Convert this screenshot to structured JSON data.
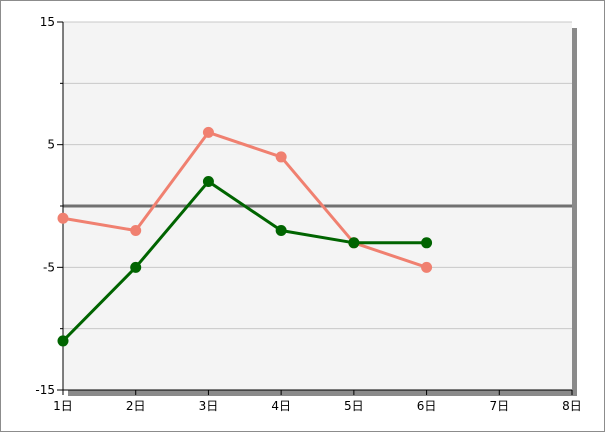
{
  "chart_data": {
    "type": "line",
    "x": [
      "1日",
      "2日",
      "3日",
      "4日",
      "5日",
      "6日",
      "7日",
      "8日"
    ],
    "xlim": [
      1,
      8
    ],
    "ylim": [
      -15,
      15
    ],
    "y_tick_labels": [
      "15",
      "5",
      "-5",
      "-15"
    ],
    "y_major_ticks": [
      15,
      5,
      -5,
      -15
    ],
    "y_minor_ticks": [
      10,
      0,
      -10
    ],
    "gridlines_y": [
      15,
      10,
      5,
      -5,
      -10,
      -15
    ],
    "reference_line": 0,
    "grid": true,
    "series": [
      {
        "color": "#f08070",
        "x": [
          1,
          2,
          3,
          4,
          5,
          6
        ],
        "values": [
          -1,
          -2,
          6,
          4,
          -3,
          -5
        ]
      },
      {
        "color": "#006400",
        "x": [
          1,
          2,
          3,
          4,
          5,
          6
        ],
        "values": [
          -11,
          -5,
          2,
          -2,
          -3,
          -3
        ]
      }
    ],
    "colors": {
      "plot_background": "#f4f4f4",
      "grid": "#c8c8c8",
      "axis": "#000000",
      "reference_line": "#707070",
      "shadow": "#8a8a8a"
    }
  }
}
